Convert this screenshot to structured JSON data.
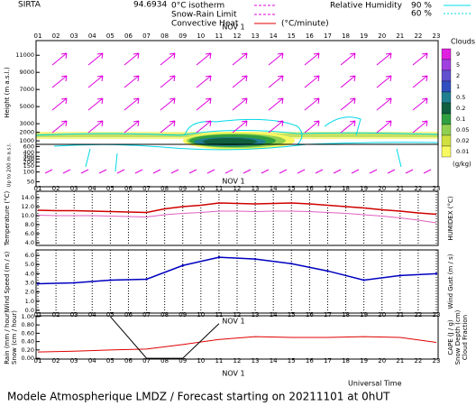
{
  "header": {
    "station": "SIRTA",
    "coords": "94.6934",
    "legend": [
      {
        "label": "0°C isotherm",
        "color": "#e000e0"
      },
      {
        "label": "Snow-Rain Limit",
        "color": "#e000e0"
      },
      {
        "label": "Convective Heat",
        "color": "#e00000"
      }
    ],
    "unit": "(°C/minute)",
    "humidity": {
      "label": "Relative Humidity",
      "color": "#00d8e8",
      "levels": [
        {
          "value": 90,
          "label": "90 %"
        },
        {
          "value": 60,
          "label": "60 %"
        }
      ]
    }
  },
  "time_axis": {
    "xlim": [
      0.9,
      23.1
    ],
    "date": "NOV 1",
    "title": "Universal Time",
    "ticks": [
      {
        "value": 1,
        "label": "01"
      },
      {
        "value": 2,
        "label": "02"
      },
      {
        "value": 3,
        "label": "03"
      },
      {
        "value": 4,
        "label": "04"
      },
      {
        "value": 5,
        "label": "05"
      },
      {
        "value": 6,
        "label": "06"
      },
      {
        "value": 7,
        "label": "07"
      },
      {
        "value": 8,
        "label": "08"
      },
      {
        "value": 9,
        "label": "09"
      },
      {
        "value": 10,
        "label": "10"
      },
      {
        "value": 11,
        "label": "11"
      },
      {
        "value": 12,
        "label": "12"
      },
      {
        "value": 13,
        "label": "13"
      },
      {
        "value": 14,
        "label": "14"
      },
      {
        "value": 15,
        "label": "15"
      },
      {
        "value": 16,
        "label": "16"
      },
      {
        "value": 17,
        "label": "17"
      },
      {
        "value": 18,
        "label": "18"
      },
      {
        "value": 19,
        "label": "19"
      },
      {
        "value": 20,
        "label": "20"
      },
      {
        "value": 21,
        "label": "21"
      },
      {
        "value": 22,
        "label": "22"
      },
      {
        "value": 23,
        "label": "23"
      }
    ]
  },
  "chart_data": [
    {
      "type": "vector",
      "ylabels": [
        {
          "text": "Height (m a.s.l.)",
          "color": "#000000"
        }
      ],
      "ylim": [
        800,
        12500
      ],
      "yticks": [
        1000,
        2000,
        3000,
        5000,
        7000,
        9000,
        11000
      ],
      "colorbar": {
        "title": "Clouds",
        "unit": "(g/kg)",
        "ticks": [
          9,
          5,
          2,
          1,
          0.5,
          0.2,
          0.1,
          0.05,
          0.02,
          0.01
        ],
        "colors": [
          "#e020e0",
          "#a040e0",
          "#6050d0",
          "#3050c0",
          "#208090",
          "#106040",
          "#30a040",
          "#90d050",
          "#d0e040",
          "#f8f860"
        ]
      }
    },
    {
      "type": "vector-low",
      "ylabels": [
        {
          "text": "Up to 200 m a.s.l.",
          "color": "#000000"
        }
      ],
      "ylim": [
        40,
        700
      ],
      "log": true,
      "yticks": [
        50,
        100,
        150,
        200,
        250,
        300,
        400,
        600
      ]
    },
    {
      "type": "line",
      "ylabels": [
        {
          "text": "Temperature (°C)",
          "color": "#e00000"
        }
      ],
      "y2labels": [
        {
          "text": "HUMIDEX (°C)",
          "color": "#e000e0"
        }
      ],
      "ylim": [
        3.4,
        15.4
      ],
      "yticks": [
        {
          "value": 4,
          "label": "4.0"
        },
        {
          "value": 6,
          "label": "6.0"
        },
        {
          "value": 8,
          "label": "8.0"
        },
        {
          "value": 10,
          "label": "10.0"
        },
        {
          "value": 12,
          "label": "12.0"
        },
        {
          "value": 14,
          "label": "14.0"
        }
      ],
      "x": [
        1,
        2,
        3,
        4,
        5,
        6,
        7,
        8,
        9,
        10,
        11,
        12,
        13,
        14,
        15,
        16,
        17,
        18,
        19,
        20,
        21,
        22,
        23
      ],
      "series": [
        {
          "color": "#d00000",
          "values": [
            11.2,
            11.1,
            11.1,
            11.0,
            10.9,
            10.8,
            10.7,
            11.5,
            12.0,
            12.3,
            12.8,
            12.7,
            12.6,
            12.7,
            12.8,
            12.6,
            12.3,
            12.0,
            11.7,
            11.3,
            11.0,
            10.6,
            10.3
          ]
        },
        {
          "color": "#e060c0",
          "values": [
            10.1,
            10.0,
            10.0,
            10.0,
            9.9,
            9.8,
            9.7,
            10.2,
            10.5,
            10.7,
            11.0,
            11.0,
            10.9,
            11.0,
            11.0,
            10.9,
            10.7,
            10.5,
            10.2,
            9.9,
            9.5,
            9.0,
            8.4
          ]
        }
      ]
    },
    {
      "type": "line",
      "ylabels": [
        {
          "text": "Wind Speed (m / s)",
          "color": "#0000c0"
        }
      ],
      "y2labels": [
        {
          "text": "Wind Gust (m / s)",
          "color": "#e000e0"
        }
      ],
      "ylim": [
        -0.3,
        6.6
      ],
      "yticks": [
        {
          "value": 0,
          "label": "0.0"
        },
        {
          "value": 1,
          "label": "1.0"
        },
        {
          "value": 2,
          "label": "2.0"
        },
        {
          "value": 3,
          "label": "3.0"
        },
        {
          "value": 4,
          "label": "4.0"
        },
        {
          "value": 5,
          "label": "5.0"
        },
        {
          "value": 6,
          "label": "6.0"
        }
      ],
      "x": [
        1,
        3,
        5,
        7,
        9,
        11,
        13,
        15,
        17,
        19,
        21,
        23
      ],
      "series": [
        {
          "color": "#0000c0",
          "values": [
            2.9,
            3.0,
            3.3,
            3.4,
            4.9,
            5.8,
            5.6,
            5.1,
            4.3,
            3.3,
            3.8,
            4.0
          ]
        }
      ]
    },
    {
      "type": "line",
      "ylabels": [
        {
          "text": "Rain (mm / hour)",
          "color": "#00b000"
        },
        {
          "text": "Snow (cm / hour)",
          "color": "#0000c0"
        }
      ],
      "y2labels": [
        {
          "text": "CAPE (J / g)",
          "color": "#e00000"
        },
        {
          "text": "Snow Depth (cm)",
          "color": "#0000c0"
        },
        {
          "text": "Cloud Fraction",
          "color": "#000000"
        }
      ],
      "ylim": [
        -0.02,
        1.02
      ],
      "yticks": [
        {
          "value": 0,
          "label": "0.00"
        },
        {
          "value": 0.2,
          "label": "0.20"
        },
        {
          "value": 0.4,
          "label": "0.40"
        },
        {
          "value": 0.6,
          "label": "0.60"
        },
        {
          "value": 0.8,
          "label": "0.80"
        },
        {
          "value": 1,
          "label": "1.00"
        }
      ],
      "x": [
        1,
        3,
        5,
        7,
        9,
        11,
        13,
        15,
        17,
        19,
        21,
        23
      ],
      "series": [
        {
          "color": "#e00000",
          "values": [
            0.15,
            0.17,
            0.2,
            0.22,
            0.33,
            0.45,
            0.52,
            0.5,
            0.5,
            0.52,
            0.5,
            0.38
          ]
        },
        {
          "color": "#000000",
          "x": [
            5,
            7,
            9,
            11
          ],
          "values": [
            1.0,
            0.0,
            0.0,
            0.83
          ]
        }
      ]
    }
  ],
  "footer": "Modele Atmospherique LMDZ / Forecast starting on 20211101 at 0hUT"
}
